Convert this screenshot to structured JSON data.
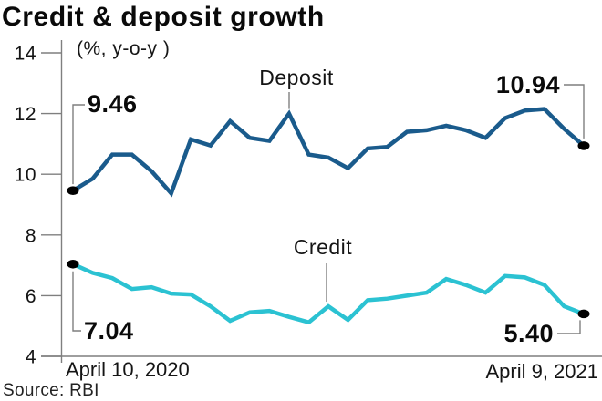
{
  "header": {
    "title": "Credit & deposit growth",
    "unit_label": "(%, y-o-y )"
  },
  "footer": {
    "source": "Source: RBI"
  },
  "chart_data": {
    "type": "line",
    "title": "Credit & deposit growth",
    "ylabel": "(%, y-o-y )",
    "ylim": [
      4,
      14
    ],
    "yticks": [
      14,
      12,
      10,
      8,
      6,
      4
    ],
    "grid": false,
    "x_start_label": "April 10, 2020",
    "x_end_label": "April 9, 2021",
    "series": [
      {
        "name": "Deposit",
        "color": "#1a5b8c",
        "first_value_label": "9.46",
        "last_value_label": "10.94",
        "first_value": 9.46,
        "last_value": 10.94,
        "values": [
          9.46,
          9.85,
          10.65,
          10.65,
          10.1,
          9.37,
          11.15,
          10.95,
          11.75,
          11.2,
          11.1,
          12.0,
          10.65,
          10.55,
          10.2,
          10.85,
          10.9,
          11.4,
          11.45,
          11.6,
          11.45,
          11.2,
          11.85,
          12.1,
          12.15,
          11.5,
          10.94
        ]
      },
      {
        "name": "Credit",
        "color": "#2bc2d2",
        "first_value_label": "7.04",
        "last_value_label": "5.40",
        "first_value": 7.04,
        "last_value": 5.4,
        "values": [
          7.04,
          6.75,
          6.58,
          6.22,
          6.28,
          6.07,
          6.04,
          5.65,
          5.17,
          5.45,
          5.5,
          5.3,
          5.12,
          5.65,
          5.2,
          5.85,
          5.9,
          6.0,
          6.1,
          6.55,
          6.35,
          6.1,
          6.65,
          6.6,
          6.35,
          5.65,
          5.4
        ]
      }
    ],
    "colors": {
      "axis": "#7f7f7f",
      "callout": "#7f7f7f",
      "marker": "#000000",
      "text": "#141414"
    }
  }
}
